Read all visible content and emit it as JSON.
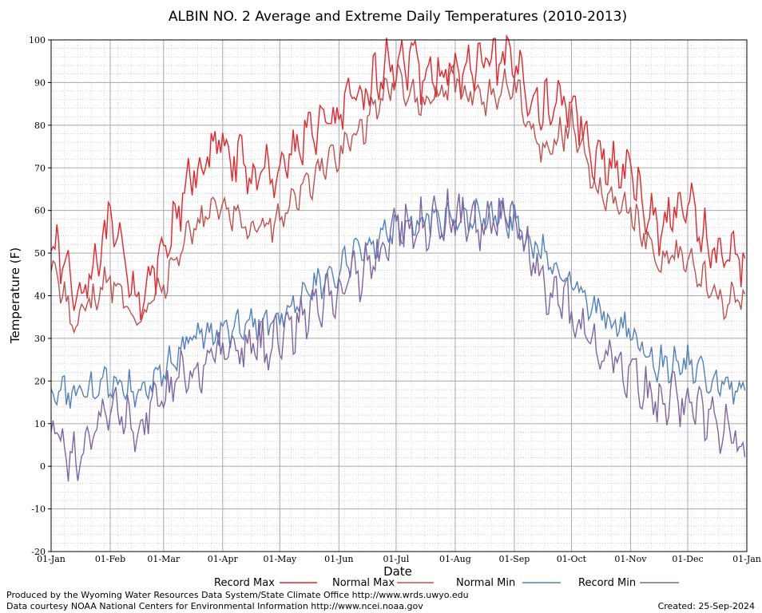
{
  "chart_data": {
    "type": "line",
    "title": "ALBIN NO. 2 Average and Extreme Daily Temperatures (2010-2013)",
    "xlabel": "Date",
    "ylabel": "Temperature (F)",
    "ylim": [
      -20,
      100
    ],
    "xlim": [
      "01-Jan",
      "01-Jan"
    ],
    "y_ticks": [
      -20,
      -10,
      0,
      10,
      20,
      30,
      40,
      50,
      60,
      70,
      80,
      90,
      100
    ],
    "x_ticks": [
      "01-Jan",
      "01-Feb",
      "01-Mar",
      "01-Apr",
      "01-May",
      "01-Jun",
      "01-Jul",
      "01-Aug",
      "01-Sep",
      "01-Oct",
      "01-Nov",
      "01-Dec",
      "01-Jan"
    ],
    "grid": true,
    "legend_position": "bottom",
    "series": [
      {
        "name": "Record Max",
        "color": "#e8232a",
        "x": [
          "01-Jan",
          "15-Jan",
          "01-Feb",
          "15-Feb",
          "01-Mar",
          "15-Mar",
          "01-Apr",
          "15-Apr",
          "01-May",
          "15-May",
          "01-Jun",
          "15-Jun",
          "01-Jul",
          "15-Jul",
          "01-Aug",
          "15-Aug",
          "01-Sep",
          "15-Sep",
          "01-Oct",
          "15-Oct",
          "01-Nov",
          "15-Nov",
          "01-Dec",
          "15-Dec",
          "31-Dec"
        ],
        "values": [
          54,
          40,
          56,
          40,
          48,
          68,
          76,
          68,
          70,
          78,
          82,
          88,
          96,
          92,
          92,
          94,
          94,
          84,
          86,
          72,
          68,
          56,
          62,
          50,
          48
        ]
      },
      {
        "name": "Normal Max",
        "color": "#c0504d",
        "x": [
          "01-Jan",
          "15-Jan",
          "01-Feb",
          "15-Feb",
          "01-Mar",
          "15-Mar",
          "01-Apr",
          "15-Apr",
          "01-May",
          "15-May",
          "01-Jun",
          "15-Jun",
          "01-Jul",
          "15-Jul",
          "01-Aug",
          "15-Aug",
          "01-Sep",
          "15-Sep",
          "01-Oct",
          "15-Oct",
          "01-Nov",
          "15-Nov",
          "01-Dec",
          "15-Dec",
          "31-Dec"
        ],
        "values": [
          46,
          34,
          44,
          34,
          42,
          56,
          62,
          56,
          58,
          66,
          74,
          80,
          92,
          84,
          90,
          86,
          90,
          74,
          80,
          64,
          60,
          48,
          50,
          40,
          38
        ]
      },
      {
        "name": "Normal Min",
        "color": "#4f81bd",
        "x": [
          "01-Jan",
          "15-Jan",
          "01-Feb",
          "15-Feb",
          "01-Mar",
          "15-Mar",
          "01-Apr",
          "15-Apr",
          "01-May",
          "15-May",
          "01-Jun",
          "15-Jun",
          "01-Jul",
          "15-Jul",
          "01-Aug",
          "15-Aug",
          "01-Sep",
          "15-Sep",
          "01-Oct",
          "15-Oct",
          "01-Nov",
          "15-Nov",
          "01-Dec",
          "15-Dec",
          "31-Dec"
        ],
        "values": [
          18,
          16,
          20,
          18,
          22,
          30,
          32,
          34,
          36,
          40,
          46,
          52,
          56,
          58,
          58,
          58,
          58,
          50,
          44,
          36,
          32,
          24,
          24,
          20,
          16
        ]
      },
      {
        "name": "Record Min",
        "color": "#8064a2",
        "x": [
          "01-Jan",
          "15-Jan",
          "01-Feb",
          "15-Feb",
          "01-Mar",
          "15-Mar",
          "01-Apr",
          "15-Apr",
          "01-May",
          "15-May",
          "01-Jun",
          "15-Jun",
          "01-Jul",
          "15-Jul",
          "01-Aug",
          "15-Aug",
          "01-Sep",
          "15-Sep",
          "01-Oct",
          "15-Oct",
          "01-Nov",
          "15-Nov",
          "01-Dec",
          "15-Dec",
          "31-Dec"
        ],
        "values": [
          10,
          0,
          14,
          10,
          16,
          22,
          26,
          28,
          30,
          36,
          42,
          46,
          56,
          56,
          58,
          56,
          58,
          44,
          36,
          28,
          22,
          14,
          16,
          10,
          4
        ]
      }
    ]
  },
  "footer": {
    "line1": "Produced by the Wyoming Water Resources Data System/State Climate Office http://www.wrds.uwyo.edu",
    "line2": "Data courtesy NOAA National Centers for Environmental Information http://www.ncei.noaa.gov",
    "created": "Created: 25-Sep-2024"
  }
}
